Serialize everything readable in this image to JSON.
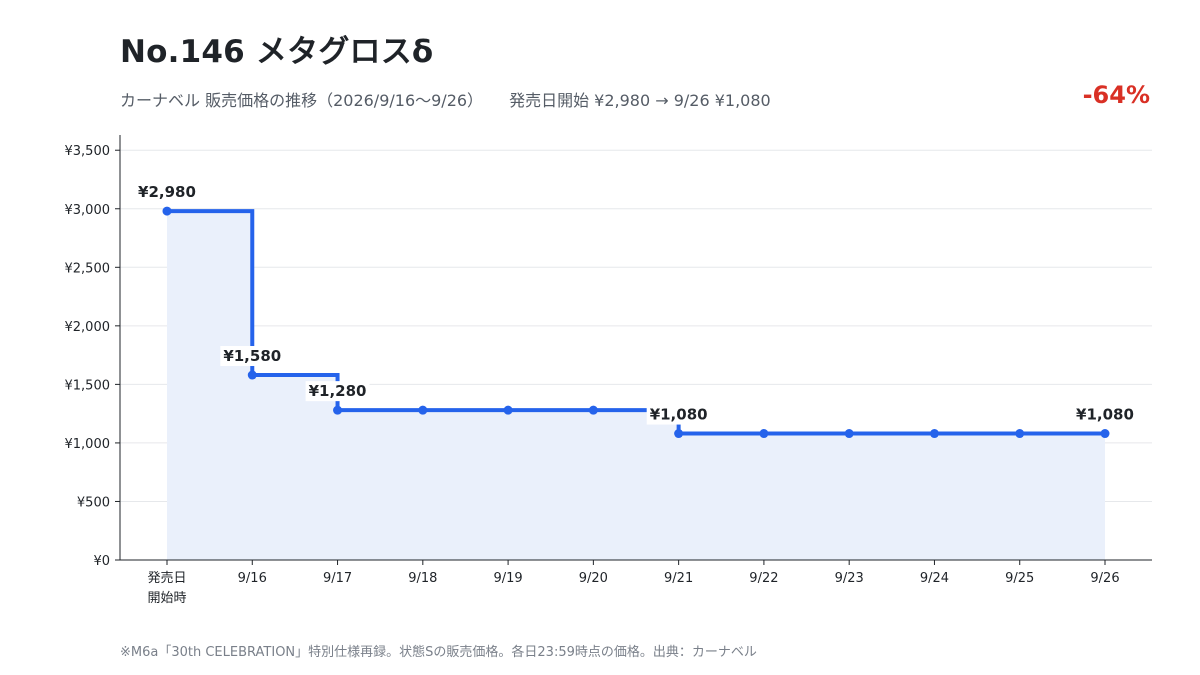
{
  "header": {
    "title": "No.146 メタグロスδ",
    "subtitle_main": "カーナベル 販売価格の推移（2026/9/16〜9/26）",
    "subtitle_detail": "発売日開始 ¥2,980 → 9/26 ¥1,080",
    "change_badge": "-64%"
  },
  "footnote": "※M6a「30th CELEBRATION」特別仕様再録。状態Sの販売価格。各日23:59時点の価格。出典：カーナベル",
  "colors": {
    "line": "#2563eb",
    "fill": "#eaf0fb",
    "change": "#d93025",
    "grid": "#e6e8eb"
  },
  "chart_data": {
    "type": "line",
    "step": "post",
    "title": "No.146 メタグロスδ",
    "xlabel": "",
    "ylabel": "",
    "categories": [
      "発売日\n開始時",
      "9/16",
      "9/17",
      "9/18",
      "9/19",
      "9/20",
      "9/21",
      "9/22",
      "9/23",
      "9/24",
      "9/25",
      "9/26"
    ],
    "series": [
      {
        "name": "",
        "values": [
          2980,
          1580,
          1280,
          1280,
          1280,
          1280,
          1080,
          1080,
          1080,
          1080,
          1080,
          1080
        ]
      }
    ],
    "point_labels": [
      {
        "index": 0,
        "text": "¥2,980"
      },
      {
        "index": 1,
        "text": "¥1,580"
      },
      {
        "index": 2,
        "text": "¥1,280"
      },
      {
        "index": 6,
        "text": "¥1,080"
      },
      {
        "index": 11,
        "text": "¥1,080"
      }
    ],
    "yticks": [
      0,
      500,
      1000,
      1500,
      2000,
      2500,
      3000,
      3500
    ],
    "ytick_labels": [
      "¥0",
      "¥500",
      "¥1,000",
      "¥1,500",
      "¥2,000",
      "¥2,500",
      "¥3,000",
      "¥3,500"
    ],
    "ylim": [
      0,
      3630
    ],
    "grid": true,
    "area_fill": true
  }
}
